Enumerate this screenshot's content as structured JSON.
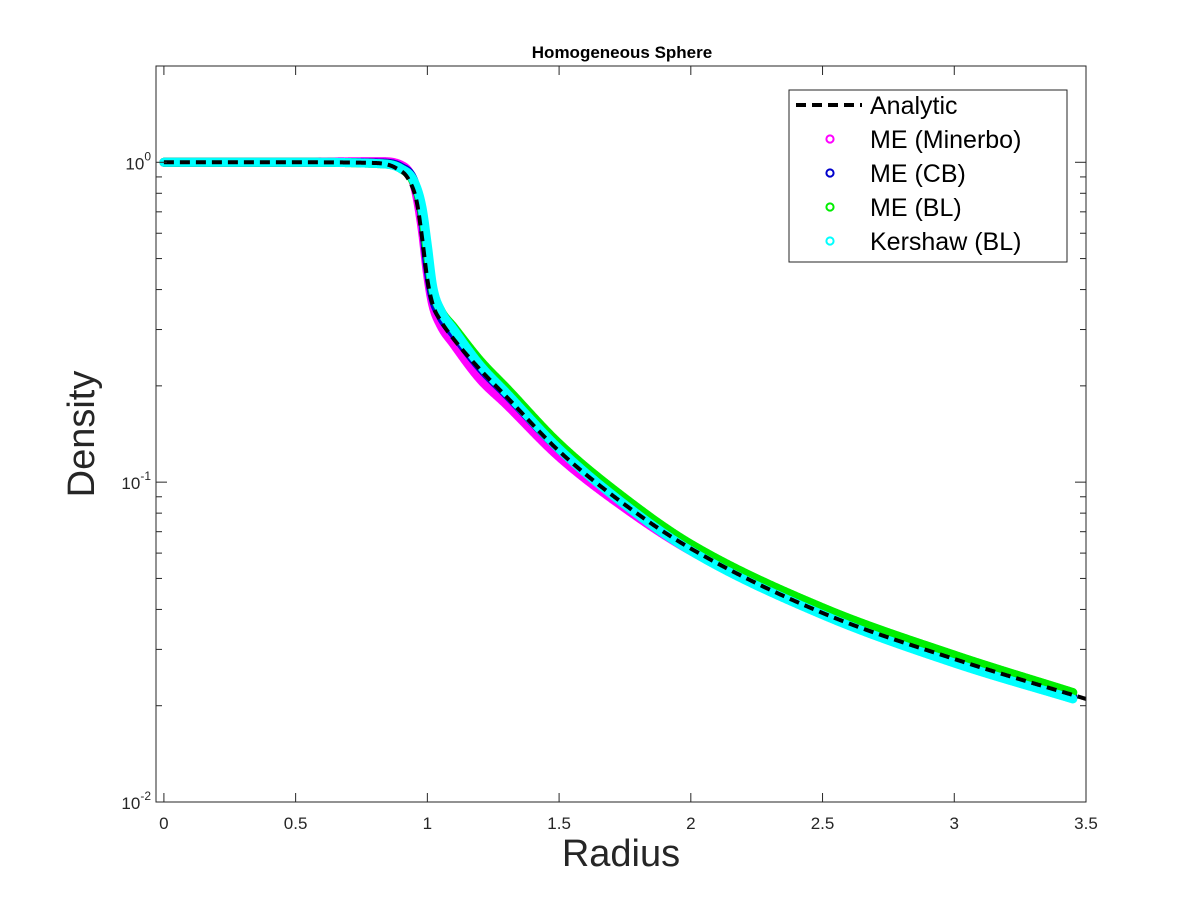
{
  "chart_data": {
    "type": "line",
    "title": "Homogeneous Sphere",
    "xlabel": "Radius",
    "ylabel": "Density",
    "xlim": [
      -0.03,
      3.5
    ],
    "ylim": [
      0.01,
      2.0
    ],
    "yscale": "log",
    "xticks": [
      0,
      0.5,
      1,
      1.5,
      2,
      2.5,
      3,
      3.5
    ],
    "xtick_labels": [
      "0",
      "0.5",
      "1",
      "1.5",
      "2",
      "2.5",
      "3",
      "3.5"
    ],
    "yticks": [
      {
        "value": 0.01,
        "base": "10",
        "exp": "-2"
      },
      {
        "value": 0.1,
        "base": "10",
        "exp": "-1"
      },
      {
        "value": 1,
        "base": "10",
        "exp": "0"
      }
    ],
    "grid": false,
    "legend_position": "top-right",
    "series": [
      {
        "name": "Analytic",
        "style": "dashed-line",
        "color": "#000000",
        "x": [
          0,
          0.5,
          0.8,
          0.88,
          0.93,
          0.96,
          0.98,
          1.0,
          1.02,
          1.05,
          1.1,
          1.2,
          1.3,
          1.5,
          1.75,
          2.0,
          2.5,
          3.0,
          3.5
        ],
        "values": [
          1.0,
          1.0,
          0.995,
          0.96,
          0.88,
          0.75,
          0.58,
          0.43,
          0.36,
          0.32,
          0.28,
          0.225,
          0.185,
          0.125,
          0.085,
          0.062,
          0.039,
          0.028,
          0.021
        ]
      },
      {
        "name": "ME (Minerbo)",
        "style": "markers",
        "color": "#ff00ff",
        "x": [
          0,
          0.5,
          0.82,
          0.9,
          0.95,
          0.98,
          1.0,
          1.02,
          1.05,
          1.1,
          1.2,
          1.3,
          1.5,
          1.75,
          2.0,
          2.5,
          3.0,
          3.45
        ],
        "values": [
          1.0,
          1.0,
          1.005,
          0.98,
          0.85,
          0.62,
          0.45,
          0.36,
          0.31,
          0.27,
          0.21,
          0.175,
          0.12,
          0.083,
          0.061,
          0.039,
          0.0275,
          0.0212
        ]
      },
      {
        "name": "ME (CB)",
        "style": "markers",
        "color": "#0000cc",
        "x": [
          0,
          0.5,
          0.82,
          0.9,
          0.95,
          0.98,
          1.0,
          1.02,
          1.05,
          1.1,
          1.2,
          1.3,
          1.5,
          1.75,
          2.0,
          2.5,
          3.0,
          3.45
        ],
        "values": [
          1.0,
          1.0,
          0.995,
          0.965,
          0.87,
          0.68,
          0.48,
          0.38,
          0.33,
          0.29,
          0.228,
          0.188,
          0.127,
          0.086,
          0.0625,
          0.0395,
          0.028,
          0.0215
        ]
      },
      {
        "name": "ME (BL)",
        "style": "markers",
        "color": "#00ee00",
        "x": [
          0,
          0.5,
          0.82,
          0.9,
          0.95,
          0.98,
          1.0,
          1.02,
          1.05,
          1.1,
          1.2,
          1.3,
          1.5,
          1.75,
          2.0,
          2.5,
          3.0,
          3.45
        ],
        "values": [
          1.0,
          1.0,
          0.99,
          0.955,
          0.86,
          0.7,
          0.52,
          0.4,
          0.345,
          0.305,
          0.24,
          0.197,
          0.132,
          0.089,
          0.064,
          0.0405,
          0.0288,
          0.022
        ]
      },
      {
        "name": "Kershaw (BL)",
        "style": "markers",
        "color": "#00ffff",
        "x": [
          0,
          0.5,
          0.82,
          0.9,
          0.95,
          0.98,
          1.0,
          1.02,
          1.05,
          1.1,
          1.2,
          1.3,
          1.5,
          1.75,
          2.0,
          2.5,
          3.0,
          3.45
        ],
        "values": [
          1.0,
          1.0,
          0.99,
          0.955,
          0.87,
          0.72,
          0.55,
          0.41,
          0.345,
          0.3,
          0.232,
          0.19,
          0.127,
          0.085,
          0.061,
          0.0385,
          0.0272,
          0.021
        ]
      }
    ]
  }
}
